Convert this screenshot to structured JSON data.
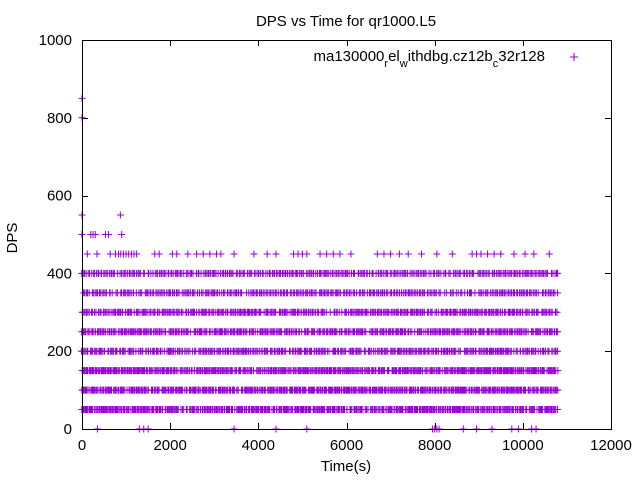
{
  "chart_data": {
    "type": "scatter",
    "title": "DPS vs Time for qr1000.L5",
    "xlabel": "Time(s)",
    "ylabel": "DPS",
    "xlim": [
      0,
      12000
    ],
    "ylim": [
      0,
      1000
    ],
    "xticks": [
      0,
      2000,
      4000,
      6000,
      8000,
      10000,
      12000
    ],
    "yticks": [
      0,
      200,
      400,
      600,
      800,
      1000
    ],
    "xtick_labels": [
      "0",
      "2000",
      "4000",
      "6000",
      "8000",
      "10000",
      "12000"
    ],
    "ytick_labels": [
      "0",
      "200",
      "400",
      "600",
      "800",
      "1000"
    ],
    "grid": false,
    "legend_position": "top-right",
    "color": "#9400d3",
    "series": [
      {
        "name": "ma130000relwithdbg.cz12bc32r128",
        "legend_parts": [
          {
            "text": "ma130000",
            "script": "normal"
          },
          {
            "text": "r",
            "script": "sub"
          },
          {
            "text": "el",
            "script": "normal"
          },
          {
            "text": "w",
            "script": "sub"
          },
          {
            "text": "ithdbg.cz12b",
            "script": "normal"
          },
          {
            "text": "c",
            "script": "sub"
          },
          {
            "text": "32r128",
            "script": "normal"
          }
        ],
        "marker": "+",
        "bands": [
          {
            "y": 50,
            "x_start": 0,
            "x_end": 10800
          },
          {
            "y": 100,
            "x_start": 0,
            "x_end": 10800
          },
          {
            "y": 150,
            "x_start": 0,
            "x_end": 10800
          },
          {
            "y": 200,
            "x_start": 0,
            "x_end": 10800
          },
          {
            "y": 250,
            "x_start": 0,
            "x_end": 10800
          },
          {
            "y": 300,
            "x_start": 0,
            "x_end": 10800
          },
          {
            "y": 350,
            "x_start": 0,
            "x_end": 10800
          },
          {
            "y": 400,
            "x_start": 0,
            "x_end": 10800
          }
        ],
        "points": [
          {
            "x": 0,
            "y": 850
          },
          {
            "x": 0,
            "y": 800
          },
          {
            "x": 0,
            "y": 550
          },
          {
            "x": 870,
            "y": 550
          },
          {
            "x": 0,
            "y": 500
          },
          {
            "x": 200,
            "y": 500
          },
          {
            "x": 250,
            "y": 500
          },
          {
            "x": 300,
            "y": 500
          },
          {
            "x": 530,
            "y": 500
          },
          {
            "x": 600,
            "y": 500
          },
          {
            "x": 900,
            "y": 500
          },
          {
            "x": 120,
            "y": 450
          },
          {
            "x": 340,
            "y": 450
          },
          {
            "x": 640,
            "y": 450
          },
          {
            "x": 760,
            "y": 450
          },
          {
            "x": 830,
            "y": 450
          },
          {
            "x": 880,
            "y": 450
          },
          {
            "x": 940,
            "y": 450
          },
          {
            "x": 1000,
            "y": 450
          },
          {
            "x": 1060,
            "y": 450
          },
          {
            "x": 1120,
            "y": 450
          },
          {
            "x": 1180,
            "y": 450
          },
          {
            "x": 1240,
            "y": 450
          },
          {
            "x": 1650,
            "y": 450
          },
          {
            "x": 1750,
            "y": 450
          },
          {
            "x": 2050,
            "y": 450
          },
          {
            "x": 2150,
            "y": 450
          },
          {
            "x": 2400,
            "y": 450
          },
          {
            "x": 2600,
            "y": 450
          },
          {
            "x": 2750,
            "y": 450
          },
          {
            "x": 2900,
            "y": 450
          },
          {
            "x": 3050,
            "y": 450
          },
          {
            "x": 3150,
            "y": 450
          },
          {
            "x": 3450,
            "y": 450
          },
          {
            "x": 3900,
            "y": 450
          },
          {
            "x": 4200,
            "y": 450
          },
          {
            "x": 4400,
            "y": 450
          },
          {
            "x": 4800,
            "y": 450
          },
          {
            "x": 4900,
            "y": 450
          },
          {
            "x": 5000,
            "y": 450
          },
          {
            "x": 5100,
            "y": 450
          },
          {
            "x": 5400,
            "y": 450
          },
          {
            "x": 5550,
            "y": 450
          },
          {
            "x": 5700,
            "y": 450
          },
          {
            "x": 5850,
            "y": 450
          },
          {
            "x": 6100,
            "y": 450
          },
          {
            "x": 6700,
            "y": 450
          },
          {
            "x": 6850,
            "y": 450
          },
          {
            "x": 7000,
            "y": 450
          },
          {
            "x": 7200,
            "y": 450
          },
          {
            "x": 7400,
            "y": 450
          },
          {
            "x": 7700,
            "y": 450
          },
          {
            "x": 8050,
            "y": 450
          },
          {
            "x": 8400,
            "y": 450
          },
          {
            "x": 8850,
            "y": 450
          },
          {
            "x": 8950,
            "y": 450
          },
          {
            "x": 9050,
            "y": 450
          },
          {
            "x": 9200,
            "y": 450
          },
          {
            "x": 9350,
            "y": 450
          },
          {
            "x": 9500,
            "y": 450
          },
          {
            "x": 9800,
            "y": 450
          },
          {
            "x": 10050,
            "y": 450
          },
          {
            "x": 10250,
            "y": 450
          },
          {
            "x": 10600,
            "y": 450
          },
          {
            "x": 350,
            "y": 0
          },
          {
            "x": 1300,
            "y": 0
          },
          {
            "x": 1400,
            "y": 0
          },
          {
            "x": 1500,
            "y": 0
          },
          {
            "x": 3450,
            "y": 0
          },
          {
            "x": 4400,
            "y": 0
          },
          {
            "x": 5100,
            "y": 0
          },
          {
            "x": 7950,
            "y": 0
          },
          {
            "x": 8000,
            "y": 0
          },
          {
            "x": 8050,
            "y": 0
          },
          {
            "x": 8100,
            "y": 0
          },
          {
            "x": 8650,
            "y": 0
          },
          {
            "x": 8950,
            "y": 0
          },
          {
            "x": 9300,
            "y": 0
          },
          {
            "x": 9750,
            "y": 0
          },
          {
            "x": 9900,
            "y": 0
          },
          {
            "x": 10200,
            "y": 0
          },
          {
            "x": 10300,
            "y": 0
          }
        ]
      }
    ]
  }
}
